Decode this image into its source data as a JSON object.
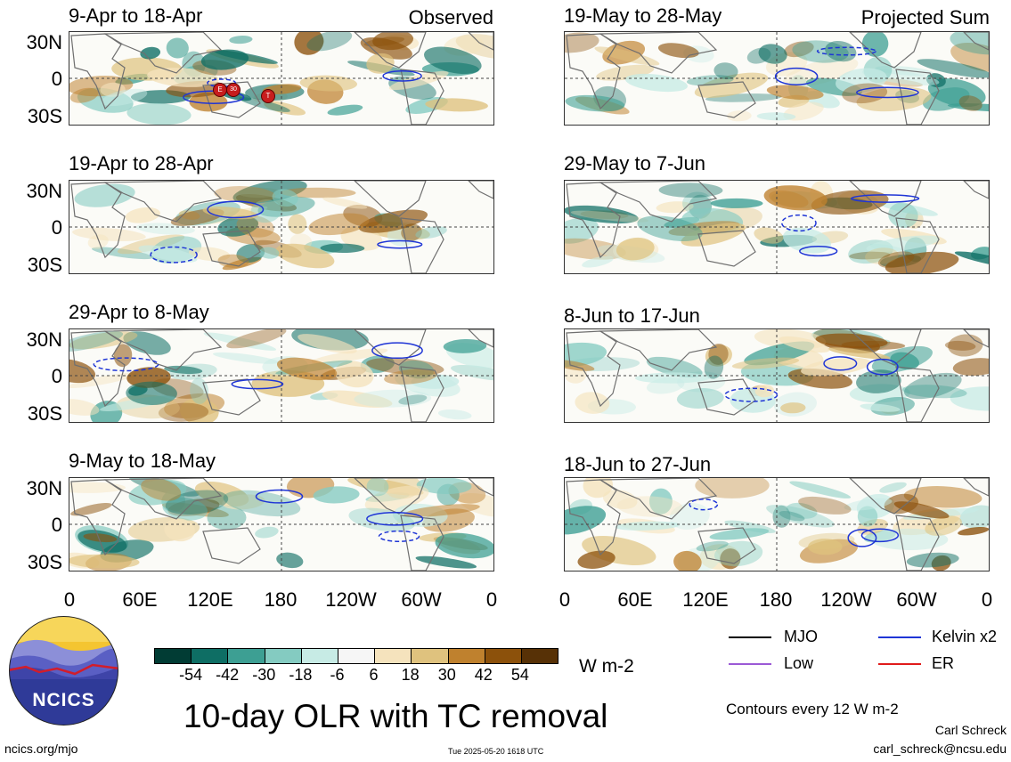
{
  "header": {
    "left_tag": "Observed",
    "right_tag": "Projected Sum"
  },
  "panels_left": [
    {
      "title": "9-Apr to 18-Apr"
    },
    {
      "title": "19-Apr to 28-Apr"
    },
    {
      "title": "29-Apr to 8-May"
    },
    {
      "title": "9-May to 18-May"
    }
  ],
  "panels_right": [
    {
      "title": "19-May to 28-May"
    },
    {
      "title": "29-May to 7-Jun"
    },
    {
      "title": "8-Jun to 17-Jun"
    },
    {
      "title": "18-Jun to 27-Jun"
    }
  ],
  "lat_labels": [
    "30N",
    "0",
    "30S"
  ],
  "lon_labels": [
    "0",
    "60E",
    "120E",
    "180",
    "120W",
    "60W",
    "0"
  ],
  "tc_markers": [
    {
      "label": "E"
    },
    {
      "label": "30"
    },
    {
      "label": "T"
    }
  ],
  "colorbar": {
    "tick_labels": [
      "-54",
      "-42",
      "-30",
      "-18",
      "-6",
      "6",
      "18",
      "30",
      "42",
      "54"
    ],
    "colors": [
      "#013c34",
      "#0e6e64",
      "#3d9f93",
      "#84cbc1",
      "#c7ebe5",
      "#f6f6f6",
      "#f5e3bd",
      "#dfc27e",
      "#bf812e",
      "#8c510b",
      "#573106"
    ],
    "units": "W m-2"
  },
  "title": "10-day OLR with TC removal",
  "legend": {
    "items": [
      {
        "label": "MJO",
        "color": "#000000"
      },
      {
        "label": "Kelvin x2",
        "color": "#1f35d6"
      },
      {
        "label": "Low",
        "color": "#9b59d6"
      },
      {
        "label": "ER",
        "color": "#e01b1b"
      }
    ],
    "note": "Contours every 12 W m-2"
  },
  "footer": {
    "site": "ncics.org/mjo",
    "timestamp": "Tue 2025-05-20 1618 UTC",
    "author": "Carl Schreck",
    "email": "carl_schreck@ncsu.edu"
  },
  "logo": {
    "text": "NCICS"
  }
}
